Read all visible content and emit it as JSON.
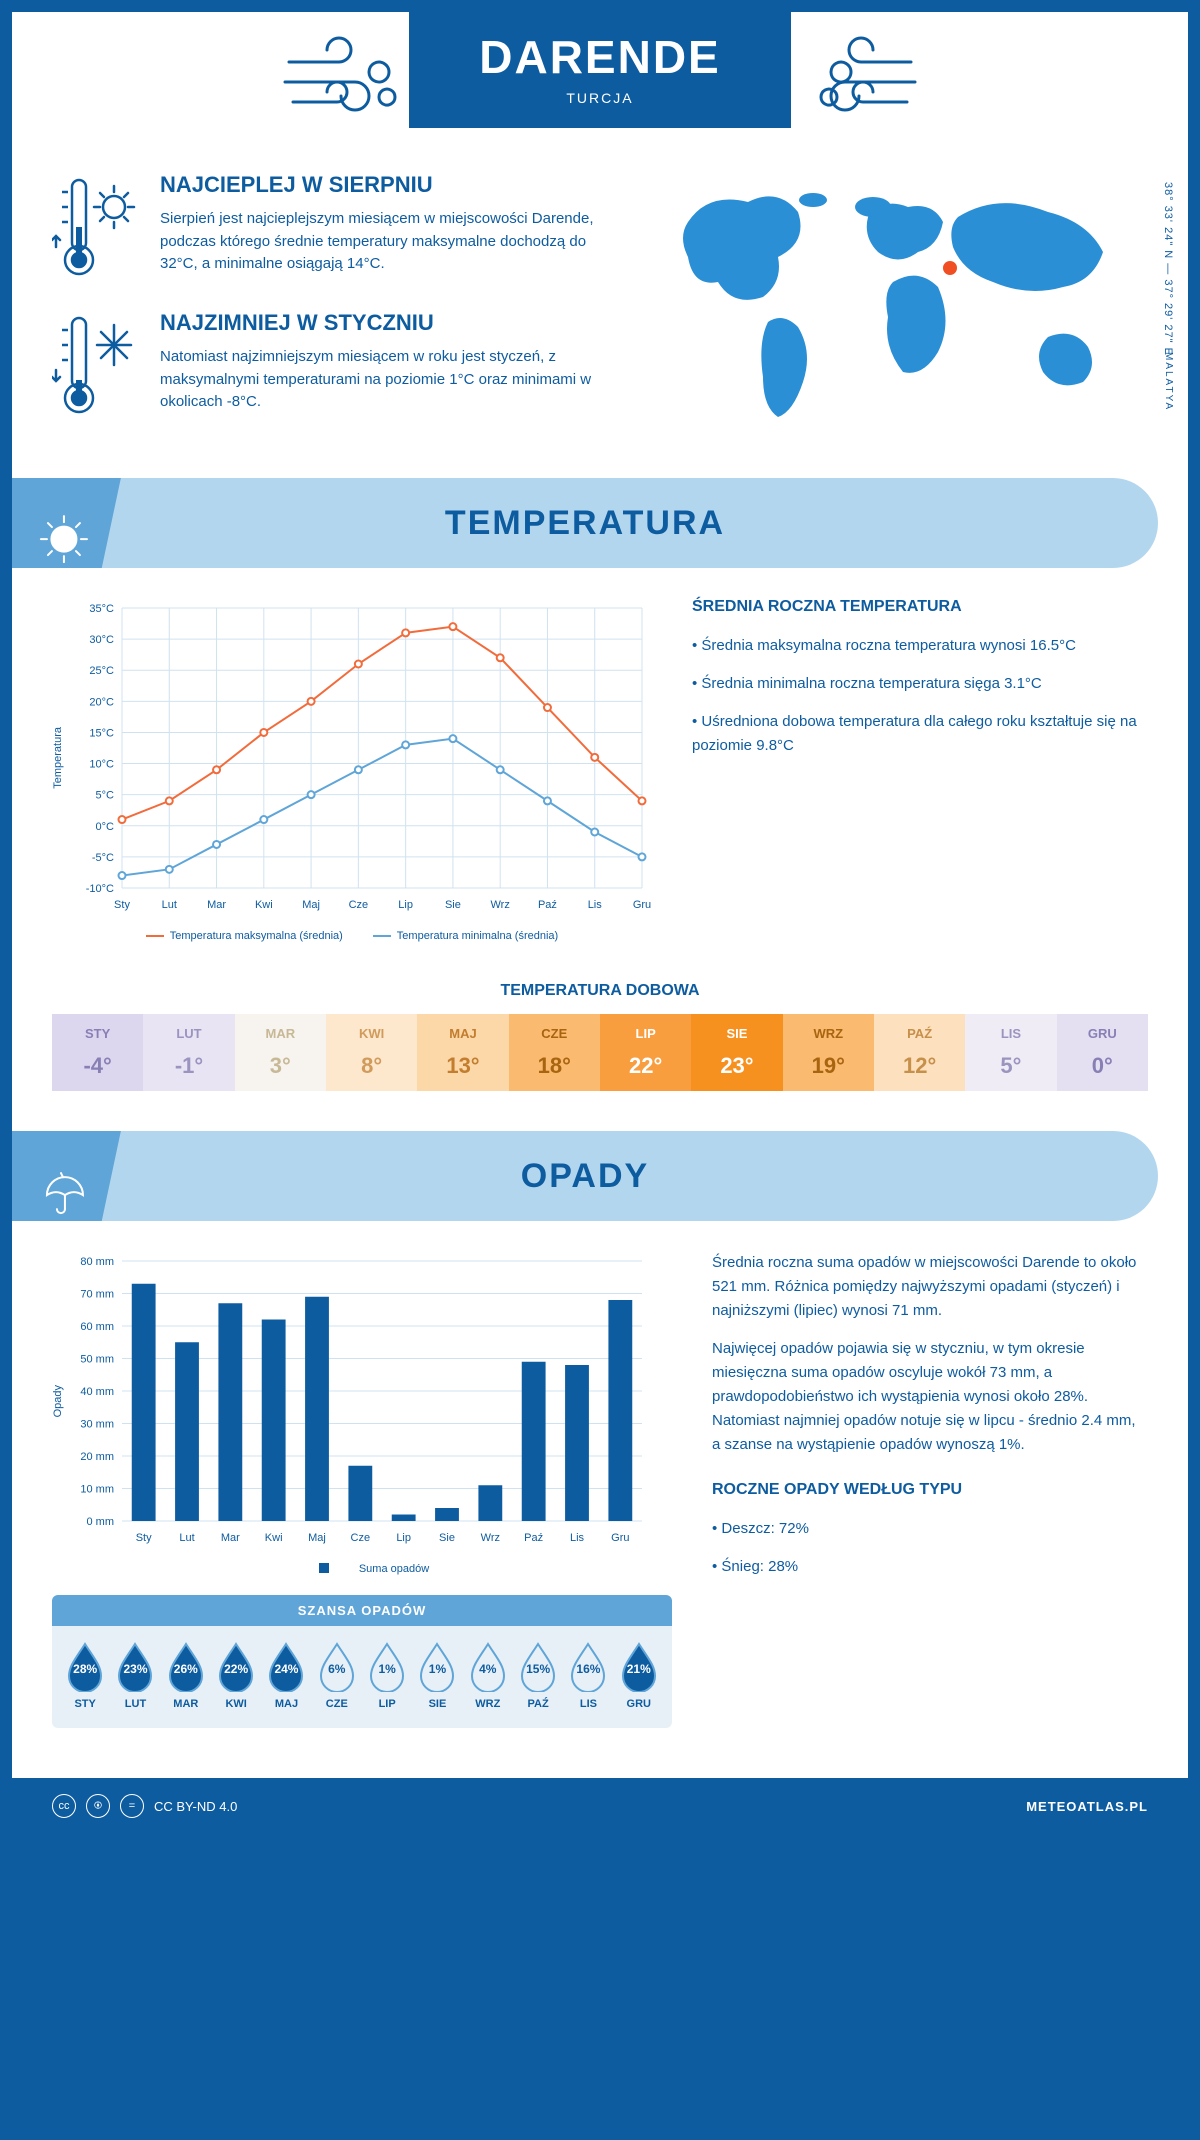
{
  "header": {
    "city": "DARENDE",
    "country": "TURCJA"
  },
  "coords": "38° 33' 24\" N — 37° 29' 27\" E",
  "region": "MALATYA",
  "warm": {
    "title": "NAJCIEPLEJ W SIERPNIU",
    "text": "Sierpień jest najcieplejszym miesiącem w miejscowości Darende, podczas którego średnie temperatury maksymalne dochodzą do 32°C, a minimalne osiągają 14°C."
  },
  "cold": {
    "title": "NAJZIMNIEJ W STYCZNIU",
    "text": "Natomiast najzimniejszym miesiącem w roku jest styczeń, z maksymalnymi temperaturami na poziomie 1°C oraz minimami w okolicach -8°C."
  },
  "section_temp": "TEMPERATURA",
  "section_precip": "OPADY",
  "months": [
    "Sty",
    "Lut",
    "Mar",
    "Kwi",
    "Maj",
    "Cze",
    "Lip",
    "Sie",
    "Wrz",
    "Paź",
    "Lis",
    "Gru"
  ],
  "months_upper": [
    "STY",
    "LUT",
    "MAR",
    "KWI",
    "MAJ",
    "CZE",
    "LIP",
    "SIE",
    "WRZ",
    "PAŹ",
    "LIS",
    "GRU"
  ],
  "temp_chart": {
    "max": [
      1,
      4,
      9,
      15,
      20,
      26,
      31,
      32,
      27,
      19,
      11,
      4
    ],
    "min": [
      -8,
      -7,
      -3,
      1,
      5,
      9,
      13,
      14,
      9,
      4,
      -1,
      -5
    ],
    "ylim": [
      -10,
      35
    ],
    "ytick": 5,
    "ylabel": "Temperatura",
    "color_max": "#f26b3b",
    "color_min": "#5fa5d8",
    "grid_color": "#d0e2f0",
    "legend_max": "Temperatura maksymalna (średnia)",
    "legend_min": "Temperatura minimalna (średnia)"
  },
  "avg_temp": {
    "title": "ŚREDNIA ROCZNA TEMPERATURA",
    "items": [
      "Średnia maksymalna roczna temperatura wynosi 16.5°C",
      "Średnia minimalna roczna temperatura sięga 3.1°C",
      "Uśredniona dobowa temperatura dla całego roku kształtuje się na poziomie 9.8°C"
    ]
  },
  "dobowa": {
    "title": "TEMPERATURA DOBOWA",
    "values": [
      "-4°",
      "-1°",
      "3°",
      "8°",
      "13°",
      "18°",
      "22°",
      "23°",
      "19°",
      "12°",
      "5°",
      "0°"
    ],
    "bg_colors": [
      "#dcd6ef",
      "#e8e4f4",
      "#f7f3ee",
      "#fde7cd",
      "#fcd7a8",
      "#faba6f",
      "#f89e3e",
      "#f6901f",
      "#faba6f",
      "#fde0be",
      "#f0ecf6",
      "#e4dff1"
    ],
    "text_colors": [
      "#8880b5",
      "#9a94bf",
      "#c7b896",
      "#d09b5b",
      "#c27d2e",
      "#a8640f",
      "#fff",
      "#fff",
      "#a8640f",
      "#c68f4a",
      "#9a94bf",
      "#8880b5"
    ]
  },
  "precip_chart": {
    "values": [
      73,
      55,
      67,
      62,
      69,
      17,
      2,
      4,
      11,
      49,
      48,
      68
    ],
    "ylim": [
      0,
      80
    ],
    "ytick": 10,
    "ylabel": "Opady",
    "bar_color": "#0e5ca0",
    "grid_color": "#d0e2f0",
    "legend": "Suma opadów"
  },
  "precip_text": {
    "p1": "Średnia roczna suma opadów w miejscowości Darende to około 521 mm. Różnica pomiędzy najwyższymi opadami (styczeń) i najniższymi (lipiec) wynosi 71 mm.",
    "p2": "Najwięcej opadów pojawia się w styczniu, w tym okresie miesięczna suma opadów oscyluje wokół 73 mm, a prawdopodobieństwo ich wystąpienia wynosi około 28%. Natomiast najmniej opadów notuje się w lipcu - średnio 2.4 mm, a szanse na wystąpienie opadów wynoszą 1%."
  },
  "szansa": {
    "title": "SZANSA OPADÓW",
    "values": [
      28,
      23,
      26,
      22,
      24,
      6,
      1,
      1,
      4,
      15,
      16,
      21
    ]
  },
  "by_type": {
    "title": "ROCZNE OPADY WEDŁUG TYPU",
    "items": [
      "Deszcz: 72%",
      "Śnieg: 28%"
    ]
  },
  "footer": {
    "license": "CC BY-ND 4.0",
    "site": "METEOATLAS.PL"
  },
  "colors": {
    "primary": "#0e5ca0",
    "light": "#b3d6ef",
    "mid": "#5fa5d8",
    "accent": "#f26b3b"
  }
}
